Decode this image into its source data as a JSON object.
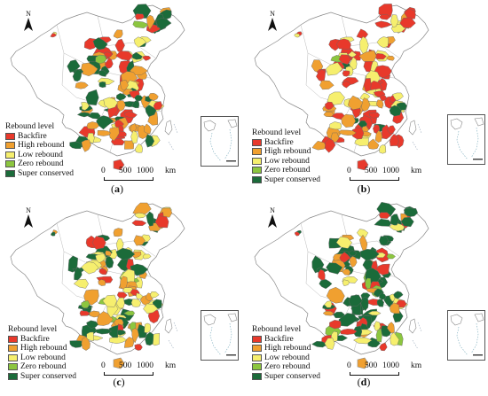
{
  "legend": {
    "title": "Rebound level",
    "items": [
      {
        "label": "Backfire",
        "color": "#e8392b"
      },
      {
        "label": "High rebound",
        "color": "#f0a030"
      },
      {
        "label": "Low rebound",
        "color": "#f6ef6e"
      },
      {
        "label": "Zero rebound",
        "color": "#8cc63f"
      },
      {
        "label": "Super conserved",
        "color": "#1b6b3a"
      }
    ]
  },
  "scalebar": {
    "ticks": [
      "0",
      "500",
      "1000"
    ],
    "unit": "km"
  },
  "north_label": "N",
  "panels": [
    {
      "id": "a",
      "letter": "a"
    },
    {
      "id": "b",
      "letter": "b"
    },
    {
      "id": "c",
      "letter": "c"
    },
    {
      "id": "d",
      "letter": "d"
    }
  ]
}
